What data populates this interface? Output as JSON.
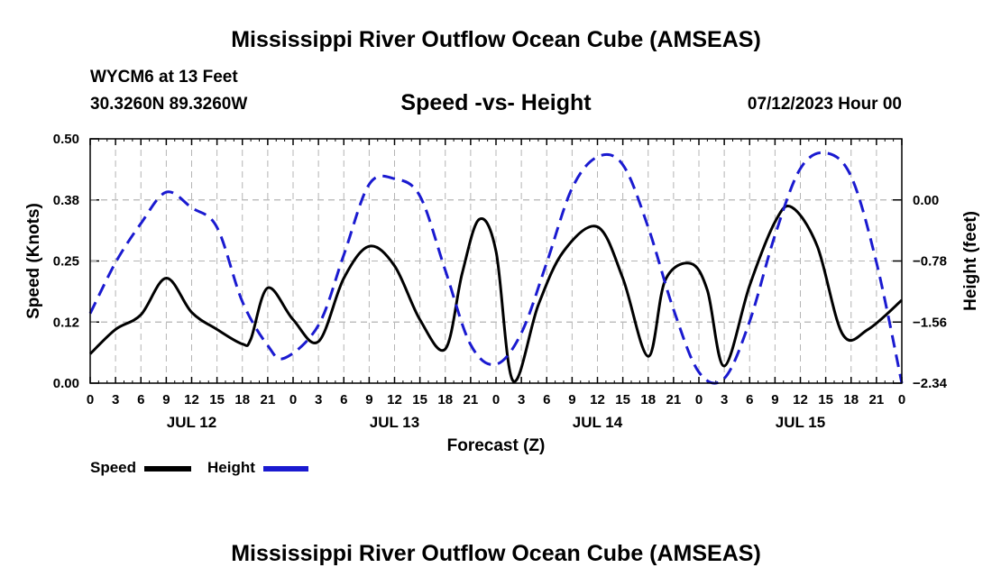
{
  "page": {
    "title": "Mississippi River Outflow Ocean Cube (AMSEAS)",
    "station": "WYCM6 at 13 Feet",
    "coords": "30.3260N  89.3260W",
    "chart_title": "Speed -vs- Height",
    "date": "07/12/2023 Hour 00",
    "footer_title": "Mississippi River Outflow Ocean Cube (AMSEAS)"
  },
  "legend": {
    "speed_label": "Speed",
    "height_label": "Height"
  },
  "colors": {
    "speed": "#000000",
    "height": "#1a1ad0",
    "grid": "#b4b4b4"
  },
  "chart_data": {
    "type": "line",
    "title": "Speed -vs- Height",
    "xlabel": "Forecast (Z)",
    "ylabel": "Speed (Knots)",
    "ylabel_right": "Height (feet)",
    "xlim": [
      0,
      96
    ],
    "ylim": [
      0,
      0.5
    ],
    "ylim_right": [
      -2.34,
      0.78
    ],
    "grid": true,
    "x_ticks": [
      0,
      3,
      6,
      9,
      12,
      15,
      18,
      21,
      24,
      27,
      30,
      33,
      36,
      39,
      42,
      45,
      48,
      51,
      54,
      57,
      60,
      63,
      66,
      69,
      72,
      75,
      78,
      81,
      84,
      87,
      90,
      93,
      96
    ],
    "x_tick_labels": [
      "0",
      "3",
      "6",
      "9",
      "12",
      "15",
      "18",
      "21",
      "0",
      "3",
      "6",
      "9",
      "12",
      "15",
      "18",
      "21",
      "0",
      "3",
      "6",
      "9",
      "12",
      "15",
      "18",
      "21",
      "0",
      "3",
      "6",
      "9",
      "12",
      "15",
      "18",
      "21",
      "0"
    ],
    "y_ticks": [
      0,
      0.125,
      0.25,
      0.375,
      0.5
    ],
    "y_tick_labels": [
      "0.00",
      "0.12",
      "0.25",
      "0.38",
      "0.50"
    ],
    "y_ticks_right": [
      -2.34,
      -1.56,
      -0.78,
      0.0
    ],
    "y_tick_labels_right": [
      "−2.34",
      "−1.56",
      "−0.78",
      "0.00"
    ],
    "day_labels": [
      {
        "x": 12,
        "label": "JUL 12"
      },
      {
        "x": 36,
        "label": "JUL 13"
      },
      {
        "x": 60,
        "label": "JUL 14"
      },
      {
        "x": 84,
        "label": "JUL 15"
      }
    ],
    "series": [
      {
        "name": "Speed",
        "axis": "left",
        "style": "solid",
        "points": [
          [
            0,
            0.06
          ],
          [
            3,
            0.11
          ],
          [
            6,
            0.14
          ],
          [
            9,
            0.215
          ],
          [
            12,
            0.145
          ],
          [
            15,
            0.11
          ],
          [
            18,
            0.08
          ],
          [
            19,
            0.09
          ],
          [
            21,
            0.195
          ],
          [
            24,
            0.13
          ],
          [
            27,
            0.085
          ],
          [
            30,
            0.215
          ],
          [
            33,
            0.28
          ],
          [
            36,
            0.24
          ],
          [
            39,
            0.13
          ],
          [
            42,
            0.07
          ],
          [
            44,
            0.225
          ],
          [
            46,
            0.335
          ],
          [
            48,
            0.27
          ],
          [
            50,
            0.005
          ],
          [
            53,
            0.16
          ],
          [
            56,
            0.27
          ],
          [
            60,
            0.32
          ],
          [
            63,
            0.215
          ],
          [
            66,
            0.055
          ],
          [
            68,
            0.21
          ],
          [
            71,
            0.245
          ],
          [
            73,
            0.19
          ],
          [
            75,
            0.035
          ],
          [
            78,
            0.2
          ],
          [
            81,
            0.33
          ],
          [
            83,
            0.36
          ],
          [
            86,
            0.28
          ],
          [
            89,
            0.1
          ],
          [
            92,
            0.11
          ],
          [
            96,
            0.17
          ]
        ]
      },
      {
        "name": "Height",
        "axis": "right",
        "style": "dashed",
        "points": [
          [
            0,
            -1.45
          ],
          [
            3,
            -0.8
          ],
          [
            6,
            -0.3
          ],
          [
            9,
            0.1
          ],
          [
            12,
            -0.1
          ],
          [
            15,
            -0.35
          ],
          [
            18,
            -1.3
          ],
          [
            21,
            -1.86
          ],
          [
            23,
            -2.02
          ],
          [
            27,
            -1.6
          ],
          [
            30,
            -0.7
          ],
          [
            33,
            0.2
          ],
          [
            36,
            0.27
          ],
          [
            39,
            0.05
          ],
          [
            42,
            -0.9
          ],
          [
            45,
            -1.85
          ],
          [
            48,
            -2.1
          ],
          [
            51,
            -1.7
          ],
          [
            54,
            -0.8
          ],
          [
            57,
            0.15
          ],
          [
            60,
            0.55
          ],
          [
            63,
            0.45
          ],
          [
            66,
            -0.35
          ],
          [
            69,
            -1.4
          ],
          [
            72,
            -2.2
          ],
          [
            75,
            -2.28
          ],
          [
            78,
            -1.55
          ],
          [
            81,
            -0.45
          ],
          [
            84,
            0.4
          ],
          [
            87,
            0.6
          ],
          [
            90,
            0.3
          ],
          [
            93,
            -0.8
          ],
          [
            96,
            -2.34
          ]
        ]
      }
    ]
  }
}
